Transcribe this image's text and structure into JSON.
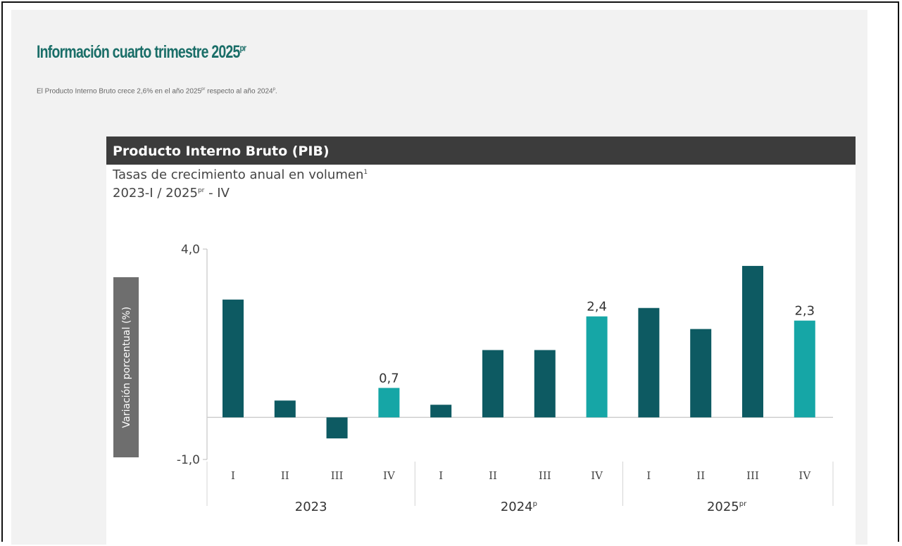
{
  "section": {
    "title": "Información cuarto trimestre 2025",
    "title_sup": "pr",
    "description_pre": "El Producto Interno Bruto crece 2,6% en el año 2025",
    "description_sup1": "pr",
    "description_mid": " respecto al año 2024",
    "description_sup2": "p",
    "description_post": "."
  },
  "card": {
    "header": "Producto Interno Bruto (PIB)",
    "subtitle": "Tasas de crecimiento anual en volumen",
    "subtitle_sup": "1",
    "period_pre": "2023-I / 2025",
    "period_sup": "pr",
    "period_post": " - IV"
  },
  "colors": {
    "bar_dark": "#0d5a62",
    "bar_highlight": "#16a6a6",
    "title_green": "#1a6e68",
    "header_bg": "#3c3c3c"
  },
  "chart_data": {
    "type": "bar",
    "ylabel": "Variación porcentual (%)",
    "ylim": [
      -1.0,
      4.0
    ],
    "yticks": [
      "4,0",
      "-1,0"
    ],
    "groups": [
      {
        "name": "2023",
        "sup": ""
      },
      {
        "name": "2024",
        "sup": "p"
      },
      {
        "name": "2025",
        "sup": "pr"
      }
    ],
    "categories": [
      "I",
      "II",
      "III",
      "IV",
      "I",
      "II",
      "III",
      "IV",
      "I",
      "II",
      "III",
      "IV"
    ],
    "values": [
      2.8,
      0.4,
      -0.5,
      0.7,
      0.3,
      1.6,
      1.6,
      2.4,
      2.6,
      2.1,
      3.6,
      2.3
    ],
    "highlighted": [
      false,
      false,
      false,
      true,
      false,
      false,
      false,
      true,
      false,
      false,
      false,
      true
    ],
    "data_labels": [
      "",
      "",
      "",
      "0,7",
      "",
      "",
      "",
      "2,4",
      "",
      "",
      "",
      "2,3"
    ],
    "grid": false,
    "legend": "none"
  }
}
